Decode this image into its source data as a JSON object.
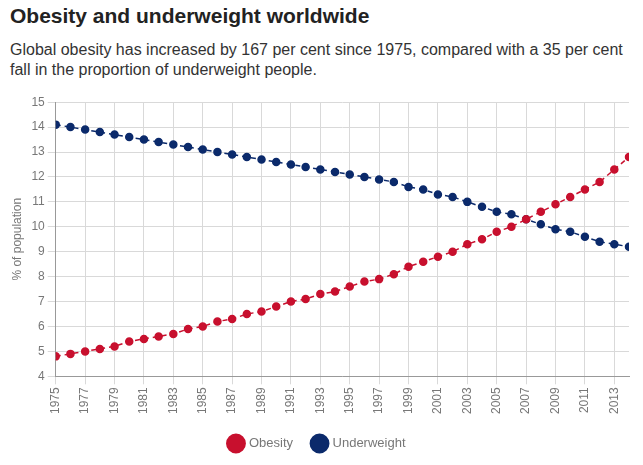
{
  "chart_data": {
    "type": "line",
    "title": "Obesity and underweight worldwide",
    "subtitle": "Global obesity has increased by 167 per cent since 1975, compared with a 35 per cent fall in the proportion of underweight people.",
    "y_label": "% of population",
    "x": [
      1975,
      1976,
      1977,
      1978,
      1979,
      1980,
      1981,
      1982,
      1983,
      1984,
      1985,
      1986,
      1987,
      1988,
      1989,
      1990,
      1991,
      1992,
      1993,
      1994,
      1995,
      1996,
      1997,
      1998,
      1999,
      2000,
      2001,
      2002,
      2003,
      2004,
      2005,
      2006,
      2007,
      2008,
      2009,
      2010,
      2011,
      2012,
      2013,
      2014
    ],
    "series": [
      {
        "name": "Obesity",
        "color": "#c8102e",
        "values": [
          4.8,
          4.9,
          5.0,
          5.1,
          5.2,
          5.4,
          5.5,
          5.6,
          5.7,
          5.9,
          6.0,
          6.2,
          6.3,
          6.5,
          6.6,
          6.8,
          7.0,
          7.1,
          7.3,
          7.4,
          7.6,
          7.8,
          7.9,
          8.1,
          8.4,
          8.6,
          8.8,
          9.0,
          9.3,
          9.5,
          9.8,
          10.0,
          10.3,
          10.6,
          10.9,
          11.2,
          11.5,
          11.8,
          12.3,
          12.8
        ]
      },
      {
        "name": "Underweight",
        "color": "#0b2a6b",
        "values": [
          14.1,
          14.0,
          13.9,
          13.8,
          13.7,
          13.6,
          13.5,
          13.4,
          13.3,
          13.2,
          13.1,
          13.0,
          12.9,
          12.8,
          12.7,
          12.6,
          12.5,
          12.4,
          12.3,
          12.2,
          12.1,
          12.0,
          11.9,
          11.8,
          11.6,
          11.5,
          11.3,
          11.2,
          11.0,
          10.8,
          10.6,
          10.5,
          10.3,
          10.1,
          9.9,
          9.8,
          9.6,
          9.4,
          9.3,
          9.2
        ]
      }
    ],
    "xlim": [
      1975,
      2014
    ],
    "xticks": [
      1975,
      1977,
      1979,
      1981,
      1983,
      1985,
      1987,
      1989,
      1991,
      1993,
      1995,
      1997,
      1999,
      2001,
      2003,
      2005,
      2007,
      2009,
      2011,
      2013
    ],
    "ylim": [
      4,
      15
    ],
    "yticks": [
      4,
      5,
      6,
      7,
      8,
      9,
      10,
      11,
      12,
      13,
      14,
      15
    ],
    "grid": true,
    "legend": "bottom",
    "marker": "circle",
    "line_style": "dashed"
  }
}
